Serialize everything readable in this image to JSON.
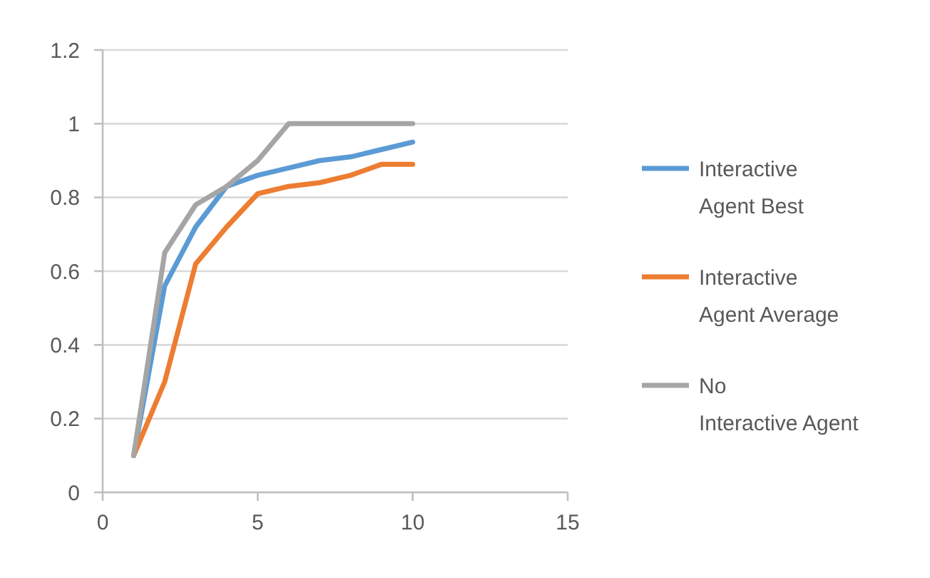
{
  "chart_data": {
    "type": "line",
    "x": [
      1,
      2,
      3,
      4,
      5,
      6,
      7,
      8,
      9,
      10
    ],
    "series": [
      {
        "name": "Interactive Agent Best",
        "color": "#5b9bd5",
        "values": [
          0.1,
          0.56,
          0.72,
          0.83,
          0.86,
          0.88,
          0.9,
          0.91,
          0.93,
          0.95
        ]
      },
      {
        "name": "Interactive Agent Average",
        "color": "#ed7d31",
        "values": [
          0.1,
          0.3,
          0.62,
          0.72,
          0.81,
          0.83,
          0.84,
          0.86,
          0.89,
          0.89
        ]
      },
      {
        "name": "No Interactive Agent",
        "color": "#a5a5a5",
        "values": [
          0.1,
          0.65,
          0.78,
          0.83,
          0.9,
          1,
          1,
          1,
          1,
          1
        ]
      }
    ],
    "xlim": [
      0,
      15
    ],
    "xticks": [
      0,
      5,
      10,
      15
    ],
    "ylim": [
      0,
      1.2
    ],
    "yticks": [
      0,
      {
        "value": 0.2,
        "label": "0.2"
      },
      {
        "value": 0.4,
        "label": "0.4"
      },
      {
        "value": 0.6,
        "label": "0.6"
      },
      {
        "value": 0.8,
        "label": "0.8"
      },
      1,
      {
        "value": 1.2,
        "label": "1.2"
      }
    ],
    "grid": "y",
    "legend": "right",
    "marker": "none",
    "line_style": "solid"
  }
}
